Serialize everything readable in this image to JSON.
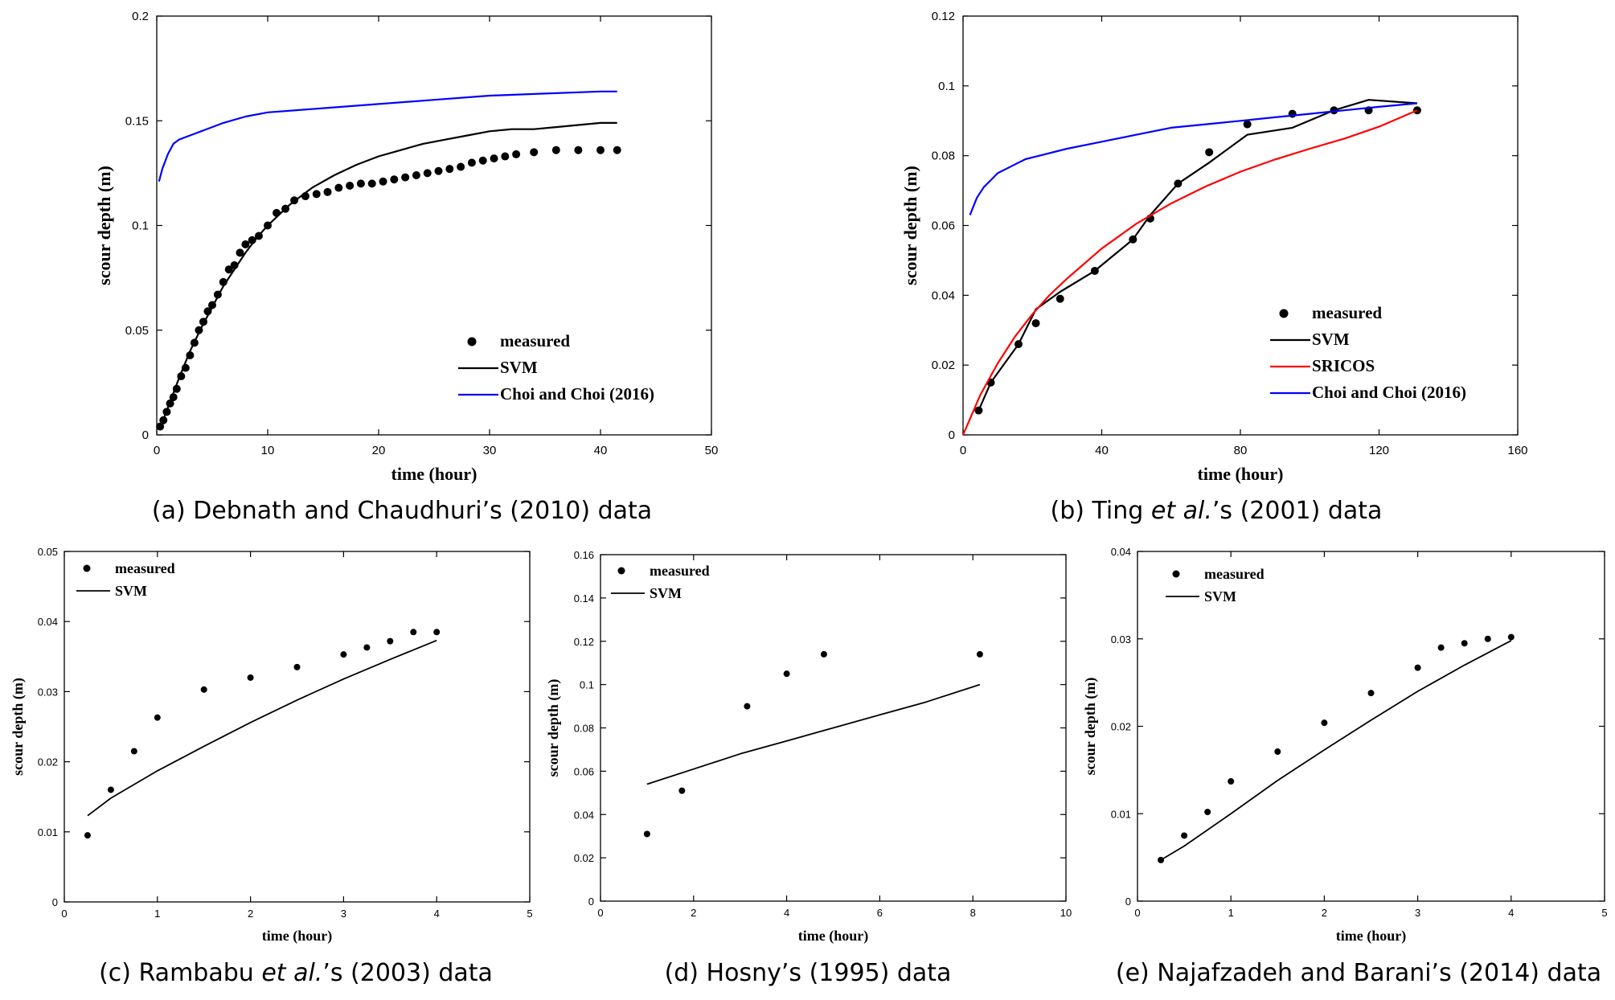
{
  "chart_data": [
    {
      "id": "a",
      "type": "line",
      "caption": "(a) Debnath and Chaudhuri’s (2010) data",
      "xlabel": "time (hour)",
      "ylabel": "scour depth (m)",
      "xlim": [
        0,
        50
      ],
      "ylim": [
        0,
        0.2
      ],
      "xticks": [
        0,
        10,
        20,
        30,
        40,
        50
      ],
      "yticks": [
        0,
        0.05,
        0.1,
        0.15,
        0.2
      ],
      "xtick_labels": [
        "0",
        "10",
        "20",
        "30",
        "40",
        "50"
      ],
      "ytick_labels": [
        "0",
        "0.05",
        "0.1",
        "0.15",
        "0.2"
      ],
      "legend_position": "bottom-right",
      "series": [
        {
          "name": "measured",
          "kind": "points",
          "color": "#000000",
          "x": [
            0.3,
            0.6,
            0.9,
            1.2,
            1.5,
            1.8,
            2.2,
            2.6,
            3.0,
            3.4,
            3.8,
            4.2,
            4.6,
            5.0,
            5.5,
            6.0,
            6.5,
            7.0,
            7.5,
            8.0,
            8.6,
            9.2,
            10.0,
            10.8,
            11.6,
            12.4,
            13.4,
            14.4,
            15.4,
            16.4,
            17.4,
            18.4,
            19.4,
            20.4,
            21.4,
            22.4,
            23.4,
            24.4,
            25.4,
            26.4,
            27.4,
            28.4,
            29.4,
            30.4,
            31.4,
            32.4,
            34.0,
            36.0,
            38.0,
            40.0,
            41.5
          ],
          "y": [
            0.004,
            0.007,
            0.011,
            0.015,
            0.018,
            0.022,
            0.028,
            0.032,
            0.038,
            0.044,
            0.05,
            0.054,
            0.059,
            0.062,
            0.067,
            0.073,
            0.079,
            0.081,
            0.087,
            0.091,
            0.093,
            0.095,
            0.1,
            0.106,
            0.108,
            0.112,
            0.114,
            0.115,
            0.116,
            0.118,
            0.119,
            0.12,
            0.12,
            0.121,
            0.122,
            0.123,
            0.124,
            0.125,
            0.126,
            0.127,
            0.128,
            0.13,
            0.131,
            0.132,
            0.133,
            0.134,
            0.135,
            0.136,
            0.136,
            0.136,
            0.136
          ]
        },
        {
          "name": "SVM",
          "kind": "line",
          "color": "#000000",
          "x": [
            0.3,
            1,
            2,
            3,
            4,
            5,
            6,
            7,
            8,
            9,
            10,
            12,
            14,
            16,
            18,
            20,
            22,
            24,
            26,
            28,
            30,
            32,
            34,
            36,
            38,
            40,
            41.5
          ],
          "y": [
            0.003,
            0.013,
            0.027,
            0.04,
            0.051,
            0.061,
            0.071,
            0.079,
            0.087,
            0.094,
            0.1,
            0.11,
            0.118,
            0.124,
            0.129,
            0.133,
            0.136,
            0.139,
            0.141,
            0.143,
            0.145,
            0.146,
            0.146,
            0.147,
            0.148,
            0.149,
            0.149
          ]
        },
        {
          "name": "Choi and Choi (2016)",
          "kind": "line",
          "color": "#0000ff",
          "x": [
            0.2,
            0.5,
            1,
            1.5,
            2,
            3,
            4,
            5,
            6,
            8,
            10,
            15,
            20,
            25,
            30,
            35,
            40,
            41.5
          ],
          "y": [
            0.121,
            0.127,
            0.134,
            0.139,
            0.141,
            0.143,
            0.145,
            0.147,
            0.149,
            0.152,
            0.154,
            0.156,
            0.158,
            0.16,
            0.162,
            0.163,
            0.164,
            0.164
          ]
        }
      ]
    },
    {
      "id": "b",
      "type": "line",
      "caption": "(b) Ting et al.’s (2001) data",
      "caption_parts": [
        "(b) Ting ",
        "et al.",
        "’s (2001) data"
      ],
      "xlabel": "time (hour)",
      "ylabel": "scour depth (m)",
      "xlim": [
        0,
        160
      ],
      "ylim": [
        0,
        0.12
      ],
      "xticks": [
        0,
        40,
        80,
        120,
        160
      ],
      "yticks": [
        0,
        0.02,
        0.04,
        0.06,
        0.08,
        0.1,
        0.12
      ],
      "xtick_labels": [
        "0",
        "40",
        "80",
        "120",
        "160"
      ],
      "ytick_labels": [
        "0",
        "0.02",
        "0.04",
        "0.06",
        "0.08",
        "0.1",
        "0.12"
      ],
      "legend_position": "bottom-right",
      "series": [
        {
          "name": "measured",
          "kind": "points",
          "color": "#000000",
          "x": [
            4.5,
            8,
            16,
            21,
            28,
            38,
            49,
            54,
            62,
            71,
            82,
            95,
            107,
            117,
            131
          ],
          "y": [
            0.007,
            0.015,
            0.026,
            0.032,
            0.039,
            0.047,
            0.056,
            0.062,
            0.072,
            0.081,
            0.089,
            0.092,
            0.093,
            0.093,
            0.093
          ]
        },
        {
          "name": "SVM",
          "kind": "line",
          "color": "#000000",
          "x": [
            4.5,
            8,
            16,
            21,
            28,
            38,
            49,
            54,
            62,
            71,
            82,
            95,
            107,
            117,
            131
          ],
          "y": [
            0.007,
            0.015,
            0.026,
            0.036,
            0.041,
            0.047,
            0.056,
            0.063,
            0.072,
            0.078,
            0.086,
            0.088,
            0.093,
            0.096,
            0.095
          ]
        },
        {
          "name": "SRICOS",
          "kind": "line",
          "color": "#ff0000",
          "x": [
            0,
            5,
            10,
            15,
            20,
            25,
            30,
            40,
            50,
            60,
            70,
            80,
            90,
            100,
            110,
            120,
            131
          ],
          "y": [
            0.0,
            0.0115,
            0.0205,
            0.0282,
            0.0346,
            0.0401,
            0.0448,
            0.0534,
            0.0605,
            0.0663,
            0.0712,
            0.0754,
            0.0789,
            0.082,
            0.0849,
            0.0883,
            0.093
          ]
        },
        {
          "name": "Choi and Choi (2016)",
          "kind": "line",
          "color": "#0000ff",
          "x": [
            2,
            4,
            6,
            8,
            10,
            14,
            18,
            22,
            30,
            40,
            50,
            60,
            70,
            80,
            90,
            100,
            110,
            120,
            131
          ],
          "y": [
            0.063,
            0.068,
            0.071,
            0.073,
            0.075,
            0.077,
            0.079,
            0.08,
            0.082,
            0.084,
            0.086,
            0.088,
            0.089,
            0.09,
            0.091,
            0.092,
            0.093,
            0.094,
            0.095
          ]
        }
      ]
    },
    {
      "id": "c",
      "type": "line",
      "caption": "(c) Rambabu et al.’s (2003) data",
      "caption_parts": [
        "(c) Rambabu ",
        "et al.",
        "’s (2003) data"
      ],
      "xlabel": "time (hour)",
      "ylabel": "scour depth (m)",
      "xlim": [
        0,
        5
      ],
      "ylim": [
        0,
        0.05
      ],
      "xticks": [
        0,
        1,
        2,
        3,
        4,
        5
      ],
      "yticks": [
        0,
        0.01,
        0.02,
        0.03,
        0.04,
        0.05
      ],
      "xtick_labels": [
        "0",
        "1",
        "2",
        "3",
        "4",
        "5"
      ],
      "ytick_labels": [
        "0",
        "0.01",
        "0.02",
        "0.03",
        "0.04",
        "0.05"
      ],
      "legend_position": "top-left",
      "series": [
        {
          "name": "measured",
          "kind": "points",
          "color": "#000000",
          "x": [
            0.25,
            0.5,
            0.75,
            1.0,
            1.5,
            2.0,
            2.5,
            3.0,
            3.25,
            3.5,
            3.75,
            4.0
          ],
          "y": [
            0.0095,
            0.016,
            0.0215,
            0.0263,
            0.0303,
            0.032,
            0.0335,
            0.0353,
            0.0363,
            0.0372,
            0.0385,
            0.0385
          ]
        },
        {
          "name": "SVM",
          "kind": "line",
          "color": "#000000",
          "x": [
            0.25,
            0.5,
            1.0,
            1.5,
            2.0,
            2.5,
            3.0,
            3.5,
            4.0
          ],
          "y": [
            0.0123,
            0.0148,
            0.0187,
            0.0222,
            0.0256,
            0.0288,
            0.0318,
            0.0346,
            0.0373
          ]
        }
      ]
    },
    {
      "id": "d",
      "type": "line",
      "caption": "(d) Hosny’s (1995) data",
      "xlabel": "time (hour)",
      "ylabel": "scour depth (m)",
      "xlim": [
        0,
        10
      ],
      "ylim": [
        0,
        0.16
      ],
      "xticks": [
        0,
        2,
        4,
        6,
        8,
        10
      ],
      "yticks": [
        0,
        0.02,
        0.04,
        0.06,
        0.08,
        0.1,
        0.12,
        0.14,
        0.16
      ],
      "xtick_labels": [
        "0",
        "2",
        "4",
        "6",
        "8",
        "10"
      ],
      "ytick_labels": [
        "0",
        "0.02",
        "0.04",
        "0.06",
        "0.08",
        "0.1",
        "0.12",
        "0.14",
        "0.16"
      ],
      "legend_position": "top-left",
      "series": [
        {
          "name": "measured",
          "kind": "points",
          "color": "#000000",
          "x": [
            1.0,
            1.75,
            3.15,
            4.0,
            4.8,
            8.15
          ],
          "y": [
            0.031,
            0.051,
            0.09,
            0.105,
            0.114,
            0.114
          ]
        },
        {
          "name": "SVM",
          "kind": "line",
          "color": "#000000",
          "x": [
            1.0,
            2.0,
            3.0,
            4.0,
            5.0,
            6.0,
            7.0,
            8.15
          ],
          "y": [
            0.054,
            0.061,
            0.068,
            0.074,
            0.08,
            0.086,
            0.092,
            0.1
          ]
        }
      ]
    },
    {
      "id": "e",
      "type": "line",
      "caption": "(e) Najafzadeh and Barani’s (2014) data",
      "xlabel": "time (hour)",
      "ylabel": "scour depth (m)",
      "xlim": [
        0,
        5
      ],
      "ylim": [
        0,
        0.04
      ],
      "xticks": [
        0,
        1,
        2,
        3,
        4,
        5
      ],
      "yticks": [
        0,
        0.01,
        0.02,
        0.03,
        0.04
      ],
      "xtick_labels": [
        "0",
        "1",
        "2",
        "3",
        "4",
        "5"
      ],
      "ytick_labels": [
        "0",
        "0.01",
        "0.02",
        "0.03",
        "0.04"
      ],
      "legend_position": "top-left",
      "series": [
        {
          "name": "measured",
          "kind": "points",
          "color": "#000000",
          "x": [
            0.25,
            0.5,
            0.75,
            1.0,
            1.5,
            2.0,
            2.5,
            3.0,
            3.25,
            3.5,
            3.75,
            4.0
          ],
          "y": [
            0.0047,
            0.0075,
            0.0102,
            0.0137,
            0.0171,
            0.0204,
            0.0238,
            0.0267,
            0.029,
            0.0295,
            0.03,
            0.0302
          ]
        },
        {
          "name": "SVM",
          "kind": "line",
          "color": "#000000",
          "x": [
            0.25,
            0.5,
            1.0,
            1.5,
            2.0,
            2.5,
            3.0,
            3.5,
            4.0
          ],
          "y": [
            0.0047,
            0.0063,
            0.01,
            0.0138,
            0.0173,
            0.0207,
            0.024,
            0.027,
            0.0298
          ]
        }
      ]
    }
  ]
}
